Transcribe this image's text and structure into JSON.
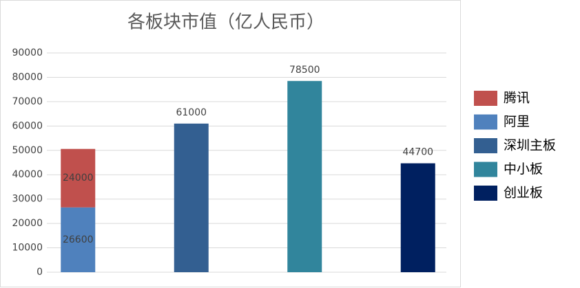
{
  "chart_data": {
    "type": "stacked_bar",
    "title": "各板块市值（亿人民币）",
    "categories": [
      null,
      null,
      null,
      null
    ],
    "series": [
      {
        "name": "腾讯",
        "color": "#c0504d",
        "values": [
          24000,
          null,
          null,
          null
        ]
      },
      {
        "name": "阿里",
        "color": "#4f81bd",
        "values": [
          26600,
          null,
          null,
          null
        ]
      },
      {
        "name": "深圳主板",
        "color": "#335f91",
        "values": [
          null,
          61000,
          null,
          null
        ]
      },
      {
        "name": "中小板",
        "color": "#31859c",
        "values": [
          null,
          null,
          78500,
          null
        ]
      },
      {
        "name": "创业板",
        "color": "#002060",
        "values": [
          null,
          null,
          null,
          44700
        ]
      }
    ],
    "ylim": [
      0,
      90000
    ],
    "yticks": [
      0,
      10000,
      20000,
      30000,
      40000,
      50000,
      60000,
      70000,
      80000,
      90000
    ],
    "grid": true,
    "legend": "right"
  }
}
